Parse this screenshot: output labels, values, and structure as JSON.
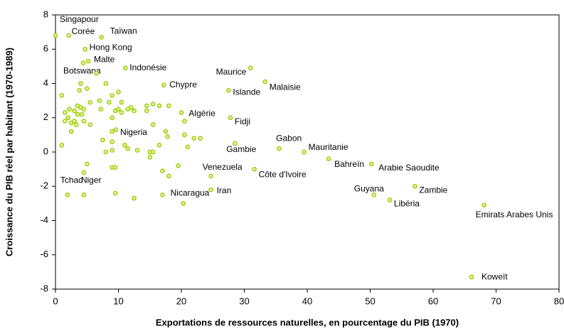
{
  "chart_data": {
    "type": "scatter",
    "x_label": "Exportations de ressources naturelles, en pourcentage du PIB (1970)",
    "y_label": "Croissance du PIB réel par habitant (1970-1989)",
    "xlim": [
      0,
      80
    ],
    "xticks": [
      0,
      10,
      20,
      30,
      40,
      50,
      60,
      70,
      80
    ],
    "ylim": [
      -8,
      8
    ],
    "yticks": [
      -8,
      -6,
      -4,
      -2,
      0,
      2,
      4,
      6,
      8
    ],
    "grid": false,
    "color": "#99cc00",
    "series": [
      {
        "x": [
          0,
          2.1,
          7.3,
          4.7,
          5.2,
          4.4,
          11.1,
          17.2,
          31.0,
          33.3,
          27.5,
          27.8,
          20.5,
          9.6,
          35.5,
          28.5,
          39.5,
          43.4,
          50.2,
          24.7,
          31.6,
          24.7,
          20.3,
          1.9,
          4.5,
          50.6,
          57.1,
          53.1,
          68.1,
          66.1,
          1,
          1,
          1.5,
          1.5,
          2,
          2.2,
          2.5,
          2.5,
          3,
          3,
          3.3,
          3.5,
          3.5,
          3.8,
          4,
          4,
          4.2,
          4.5,
          4.5,
          4.5,
          5,
          5,
          5.5,
          5.5,
          6.5,
          7,
          7.2,
          7.5,
          8,
          8,
          8.5,
          9,
          9,
          9,
          9,
          9,
          9,
          9.5,
          9.5,
          10,
          10,
          10.5,
          10.5,
          11,
          11.5,
          11.5,
          12,
          12.5,
          13,
          14.5,
          14.5,
          15,
          15,
          15.5,
          15.5,
          15.5,
          16.5,
          16.5,
          17,
          17.5,
          17.8,
          18,
          18,
          19.5,
          20,
          20.5,
          21,
          22,
          23,
          12.5,
          9.5,
          17
        ],
        "y": [
          6.8,
          6.8,
          6.7,
          6.0,
          5.3,
          5.2,
          4.9,
          3.9,
          4.9,
          4.1,
          3.6,
          2.0,
          1.8,
          1.3,
          0.2,
          0.5,
          0.0,
          -0.4,
          -0.7,
          -1.4,
          -1.0,
          -2.2,
          -3.0,
          -2.5,
          -2.5,
          -2.5,
          -2.0,
          -2.8,
          -3.1,
          -7.3,
          3.3,
          0.4,
          2.3,
          1.8,
          2.0,
          2.5,
          1.7,
          1.2,
          2.4,
          1.8,
          1.6,
          2.2,
          2.7,
          3.6,
          4.0,
          2.6,
          2.2,
          2.5,
          1.8,
          -1.2,
          3.7,
          -0.7,
          2.9,
          1.6,
          4.6,
          3.0,
          2.5,
          0.7,
          4.0,
          0.0,
          2.9,
          3.3,
          2.0,
          1.2,
          0.6,
          0.1,
          -0.9,
          -0.9,
          2.4,
          2.5,
          3.5,
          2.3,
          2.9,
          0.4,
          0.2,
          2.5,
          2.6,
          2.4,
          0.1,
          2.7,
          2.4,
          0.0,
          -0.3,
          2.8,
          1.6,
          0.0,
          0.4,
          2.7,
          -1.1,
          1.2,
          0.9,
          -1.4,
          2.7,
          -0.8,
          2.3,
          1.0,
          0.3,
          0.8,
          0.8,
          -2.7,
          -2.4,
          -2.5
        ],
        "point_labels": [
          "Singapour",
          "Corée",
          "Taïwan",
          "Hong Kong",
          "Malte",
          "Botswana",
          "Indonésie",
          "Chypre",
          "Maurice",
          "Malaisie",
          "Islande",
          "Fidji",
          "Algérie",
          "Nigeria",
          "Gabon",
          "Gambie",
          "Mauritanie",
          "Bahreïn",
          "Arabie Saoudite",
          "Venezuela",
          "Côte d'Ivoire",
          "Iran",
          "Nicaragua",
          "Tchad",
          "Niger",
          "Guyana",
          "Zambie",
          "Libéria",
          "Emirats Arabes Unis",
          "Koweït",
          null,
          null,
          null,
          null,
          null,
          null,
          null,
          null,
          null,
          null,
          null,
          null,
          null,
          null,
          null,
          null,
          null,
          null,
          null,
          null,
          null,
          null,
          null,
          null,
          null,
          null,
          null,
          null,
          null,
          null,
          null,
          null,
          null,
          null,
          null,
          null,
          null,
          null,
          null,
          null,
          null,
          null,
          null,
          null,
          null,
          null,
          null,
          null,
          null,
          null,
          null,
          null,
          null,
          null,
          null,
          null,
          null,
          null,
          null,
          null,
          null,
          null,
          null,
          null,
          null,
          null,
          null,
          null,
          null,
          null,
          null,
          null
        ]
      }
    ]
  }
}
